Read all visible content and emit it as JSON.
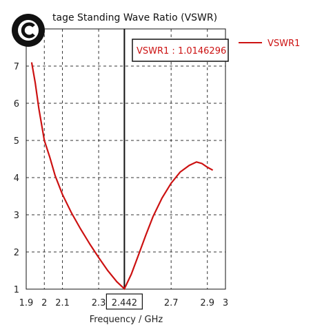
{
  "chart_data": {
    "type": "line",
    "title": "tage Standing Wave Ratio (VSWR)",
    "xlabel": "Frequency / GHz",
    "ylabel": "",
    "xlim": [
      1.9,
      3.0
    ],
    "ylim": [
      1,
      8
    ],
    "x_ticks": [
      "1.9",
      "2",
      "2.1",
      "2.3",
      "2.442",
      "2.7",
      "2.9",
      "3"
    ],
    "y_ticks": [
      "1",
      "2",
      "3",
      "4",
      "5",
      "6",
      "7"
    ],
    "grid": true,
    "legend_position": "top-right",
    "series": [
      {
        "name": "VSWR1",
        "color": "#cc1111",
        "x": [
          1.93,
          1.95,
          1.97,
          2.0,
          2.03,
          2.06,
          2.1,
          2.15,
          2.2,
          2.25,
          2.3,
          2.35,
          2.4,
          2.442,
          2.48,
          2.52,
          2.56,
          2.6,
          2.65,
          2.7,
          2.75,
          2.8,
          2.84,
          2.87,
          2.9,
          2.93
        ],
        "y": [
          7.1,
          6.55,
          5.85,
          5.0,
          4.55,
          4.05,
          3.55,
          3.05,
          2.62,
          2.22,
          1.85,
          1.5,
          1.2,
          1.01,
          1.4,
          1.92,
          2.45,
          2.95,
          3.45,
          3.85,
          4.15,
          4.33,
          4.42,
          4.38,
          4.28,
          4.2
        ]
      }
    ],
    "marker": {
      "x": 2.442,
      "label": "VSWR1 : 1.0146296"
    }
  },
  "colors": {
    "series": "#cc1111",
    "grid": "#333333",
    "frame": "#111111",
    "background": "#ffffff"
  },
  "icon": "copyright-logo"
}
